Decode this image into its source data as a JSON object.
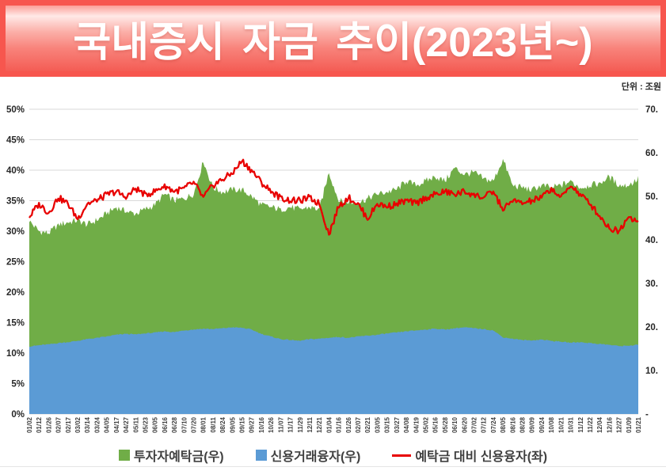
{
  "header": {
    "title": "국내증시 자금 추이(2023년~)"
  },
  "unit_label": "단위 : 조원",
  "colors": {
    "banner_red": "#F7564E",
    "banner_light_pink": "#FFE9E7",
    "deposit_green": "#70AD47",
    "credit_blue": "#5B9BD5",
    "ratio_red": "#E80000",
    "grid_gray": "#D9D9D9",
    "axis_text": "#262626"
  },
  "legend": {
    "items": [
      {
        "label": "투자자예탁금(우)",
        "swatch": "square",
        "color": "#70AD47"
      },
      {
        "label": "신용거래융자(우)",
        "swatch": "square",
        "color": "#5B9BD5"
      },
      {
        "label": "예탁금 대비 신용융자(좌)",
        "swatch": "line",
        "color": "#E80000"
      }
    ]
  },
  "chart_data": {
    "type": "area",
    "title": "국내증시 자금 추이(2023년~)",
    "unit": "조원",
    "grid": true,
    "legend_position": "bottom",
    "left_axis": {
      "min": 0,
      "max": 50,
      "tick_step": 5,
      "format": "percent",
      "ticks": [
        "0%",
        "5%",
        "10%",
        "15%",
        "20%",
        "25%",
        "30%",
        "35%",
        "40%",
        "45%",
        "50%"
      ]
    },
    "right_axis": {
      "min": 0,
      "max": 70,
      "tick_step": 10,
      "ticks": [
        "-",
        "10.",
        "20.",
        "30.",
        "40.",
        "50.",
        "60.",
        "70."
      ]
    },
    "x": [
      "01/02",
      "01/12",
      "01/26",
      "02/07",
      "02/17",
      "03/02",
      "03/14",
      "03/24",
      "04/05",
      "04/17",
      "04/27",
      "05/11",
      "05/23",
      "06/05",
      "06/16",
      "06/28",
      "07/10",
      "07/20",
      "08/01",
      "08/11",
      "08/24",
      "09/05",
      "09/15",
      "09/27",
      "10/16",
      "10/26",
      "11/07",
      "11/17",
      "11/29",
      "12/11",
      "12/21",
      "01/04",
      "01/16",
      "01/26",
      "02/07",
      "02/21",
      "03/05",
      "03/15",
      "03/27",
      "04/08",
      "04/19",
      "05/02",
      "05/16",
      "05/28",
      "06/10",
      "06/20",
      "07/02",
      "07/12",
      "07/24",
      "08/05",
      "08/16",
      "08/28",
      "09/09",
      "09/24",
      "10/08",
      "10/21",
      "10/31",
      "11/12",
      "11/22",
      "12/04",
      "12/16",
      "12/27",
      "01/09",
      "01/21"
    ],
    "series": [
      {
        "name": "투자자예탁금(우)",
        "type": "area",
        "axis": "right",
        "color": "#70AD47",
        "values": [
          44.3,
          42.0,
          41.5,
          43.5,
          44.0,
          44.5,
          43.5,
          44.5,
          46.0,
          47.5,
          46.5,
          46.0,
          47.0,
          48.0,
          50.5,
          49.0,
          49.5,
          50.5,
          58.0,
          52.0,
          51.0,
          51.5,
          51.5,
          50.0,
          48.0,
          47.5,
          47.0,
          47.5,
          47.0,
          47.5,
          47.0,
          55.5,
          49.0,
          48.5,
          48.5,
          49.5,
          50.5,
          51.0,
          51.5,
          53.5,
          52.5,
          53.5,
          54.5,
          53.5,
          56.5,
          55.0,
          55.5,
          54.0,
          53.5,
          58.5,
          52.5,
          52.0,
          51.5,
          52.5,
          52.0,
          52.5,
          53.5,
          52.0,
          52.5,
          53.0,
          54.5,
          52.5,
          52.5,
          54.0
        ]
      },
      {
        "name": "신용거래융자(우)",
        "type": "area",
        "axis": "right",
        "color": "#5B9BD5",
        "values": [
          15.5,
          15.8,
          16.0,
          16.3,
          16.5,
          16.8,
          17.2,
          17.5,
          17.8,
          18.2,
          18.4,
          18.3,
          18.5,
          18.7,
          19.0,
          18.8,
          19.2,
          19.4,
          19.6,
          19.5,
          19.7,
          19.9,
          19.8,
          19.4,
          18.4,
          17.8,
          17.2,
          17.0,
          16.8,
          17.2,
          17.3,
          17.5,
          17.7,
          17.5,
          17.8,
          18.0,
          18.2,
          18.5,
          18.7,
          19.0,
          19.2,
          19.4,
          19.6,
          19.4,
          19.7,
          19.9,
          19.7,
          19.5,
          19.2,
          17.6,
          17.3,
          17.0,
          16.9,
          17.1,
          16.8,
          16.6,
          16.4,
          16.5,
          16.3,
          16.1,
          15.9,
          15.6,
          15.7,
          15.9
        ]
      },
      {
        "name": "예탁금 대비 신용융자(좌)",
        "type": "line",
        "axis": "left",
        "color": "#E80000",
        "values": [
          32.3,
          34.5,
          33.0,
          35.5,
          34.5,
          32.0,
          34.5,
          35.0,
          36.0,
          36.5,
          35.5,
          37.0,
          36.0,
          36.5,
          37.5,
          36.5,
          37.0,
          38.0,
          35.5,
          37.5,
          38.5,
          39.5,
          41.5,
          40.0,
          38.0,
          36.5,
          35.5,
          35.0,
          35.0,
          35.5,
          34.5,
          29.5,
          34.0,
          35.5,
          34.5,
          32.0,
          34.5,
          34.0,
          34.5,
          35.0,
          34.5,
          35.5,
          36.0,
          36.5,
          36.0,
          36.5,
          36.0,
          35.5,
          36.5,
          33.5,
          35.0,
          34.5,
          35.0,
          35.5,
          37.0,
          35.5,
          37.5,
          36.0,
          34.5,
          32.5,
          30.5,
          30.0,
          32.5,
          31.5
        ]
      }
    ]
  }
}
